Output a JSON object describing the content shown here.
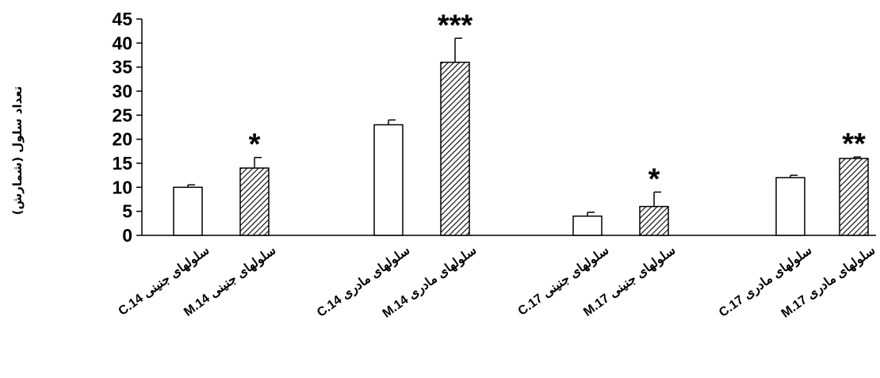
{
  "chart_data": {
    "type": "bar",
    "title": "",
    "xlabel": "",
    "ylabel": "تعداد سلول (شمارش)",
    "ylim": [
      0,
      45
    ],
    "yticks": [
      0,
      5,
      10,
      15,
      20,
      25,
      30,
      35,
      40,
      45
    ],
    "grid": false,
    "legend": "none",
    "categories": [
      "C.14 سلولهای جنینی",
      "M.14 سلولهای جنینی",
      "C.14 سلولهای مادری",
      "M.14 سلولهای مادری",
      "C.17 سلولهای جنینی",
      "M.17 سلولهای جنینی",
      "C.17 سلولهای مادری",
      "M.17  سلولهای مادری"
    ],
    "values": [
      10,
      14,
      23,
      36,
      4,
      6,
      12,
      16
    ],
    "errors": [
      0.5,
      2.2,
      1.0,
      5.0,
      0.8,
      3.0,
      0.5,
      0.3
    ],
    "patterns": [
      "open",
      "hatched",
      "open",
      "hatched",
      "open",
      "hatched",
      "open",
      "hatched"
    ],
    "significance": [
      "",
      "*",
      "",
      "***",
      "",
      "*",
      "",
      "**"
    ],
    "colors": {
      "bar_fill": "#ffffff",
      "hatch": "#000000",
      "stroke": "#000000"
    }
  }
}
